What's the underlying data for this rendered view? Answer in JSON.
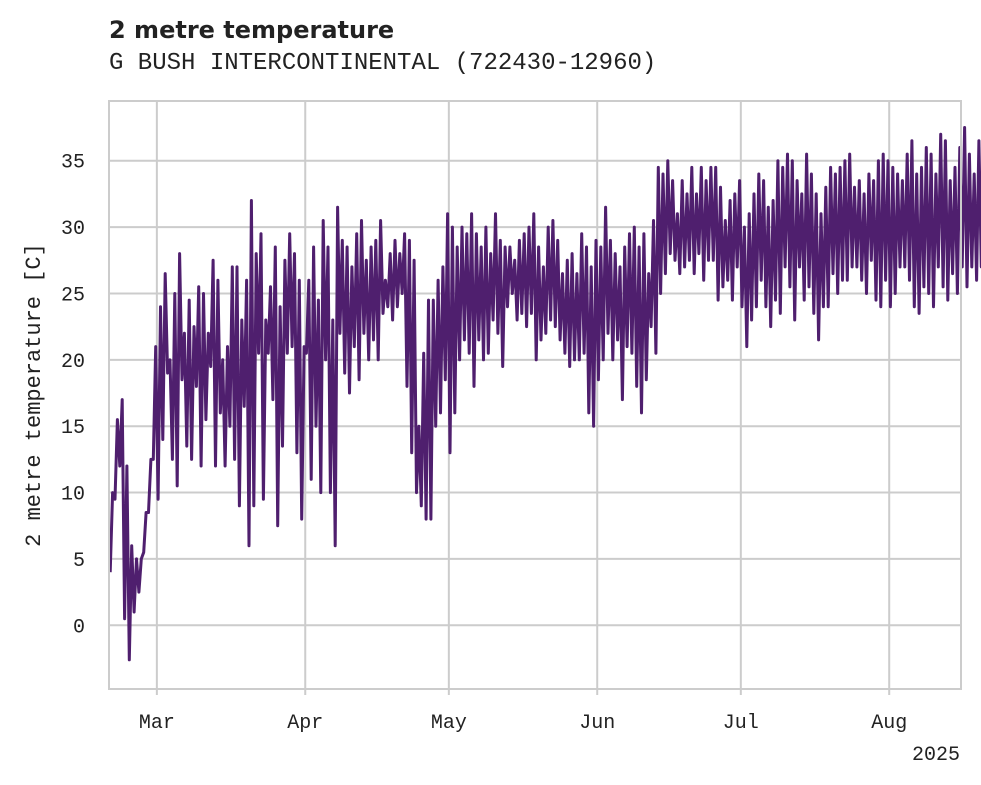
{
  "chart_data": {
    "type": "line",
    "title": "2 metre temperature",
    "subtitle": "G BUSH INTERCONTINENTAL (722430-12960)",
    "ylabel": "2 metre temperature [C]",
    "xlabel": "",
    "x_offset_label": "2025",
    "x_range": [
      "2025-02-19",
      "2025-08-16"
    ],
    "ylim": [
      -4.8,
      39.5
    ],
    "yticks": [
      0,
      5,
      10,
      15,
      20,
      25,
      30,
      35
    ],
    "xticks": [
      {
        "date": "2025-03-01",
        "label": "Mar"
      },
      {
        "date": "2025-04-01",
        "label": "Apr"
      },
      {
        "date": "2025-05-01",
        "label": "May"
      },
      {
        "date": "2025-06-01",
        "label": "Jun"
      },
      {
        "date": "2025-07-01",
        "label": "Jul"
      },
      {
        "date": "2025-08-01",
        "label": "Aug"
      }
    ],
    "grid": true,
    "series": [
      {
        "color": "#4f1f6e",
        "x_step_hours": 24,
        "x_start": "2025-02-19",
        "daily_min": [
          4.0,
          9.5,
          12.0,
          0.5,
          -2.6,
          1.0,
          2.5,
          5.5,
          8.5,
          12.5,
          9.5,
          14.0,
          19.0,
          12.5,
          10.5,
          18.5,
          13.5,
          12.5,
          18.0,
          12.0,
          15.5,
          19.5,
          12.0,
          16.0,
          12.0,
          15.0,
          12.5,
          9.0,
          16.5,
          6.0,
          9.0,
          20.5,
          9.5,
          20.5,
          17.0,
          7.5,
          13.5,
          20.5,
          21.0,
          13.0,
          8.0,
          20.5,
          11.0,
          15.0,
          10.0,
          20.0,
          10.0,
          6.0,
          22.0,
          19.0,
          17.5,
          21.0,
          18.5,
          22.0,
          20.0,
          21.5,
          20.0,
          23.5,
          24.0,
          23.0,
          24.0,
          25.0,
          18.0,
          13.0,
          10.0,
          9.0,
          8.0,
          8.0,
          15.0,
          16.0,
          18.5,
          13.0,
          16.0,
          20.0,
          21.5,
          20.5,
          18.0,
          21.5,
          20.0,
          20.5,
          23.0,
          22.0,
          19.5,
          24.0,
          25.0,
          23.0,
          23.5,
          22.5,
          23.5,
          20.0,
          21.5,
          22.0,
          23.0,
          22.5,
          21.5,
          20.5,
          19.5,
          20.0,
          20.0,
          20.5,
          16.0,
          15.0,
          18.5,
          20.0,
          22.0,
          20.0,
          21.5,
          17.0,
          21.0,
          20.5,
          18.0,
          16.0,
          18.5,
          22.5,
          20.5,
          25.0,
          26.5,
          28.0,
          27.5,
          26.5,
          27.0,
          27.5,
          26.5,
          28.0,
          26.0,
          27.5,
          27.5,
          24.5,
          25.5,
          26.0,
          24.5,
          27.0,
          24.0,
          21.0,
          23.0,
          24.0,
          26.0,
          24.0,
          22.5,
          24.5,
          23.5,
          27.0,
          25.5,
          23.0,
          27.0,
          24.5,
          25.5,
          23.5,
          21.5,
          24.0,
          24.0,
          26.5,
          25.0,
          26.0,
          26.0,
          27.0,
          27.0,
          26.0,
          25.0,
          27.5,
          24.5,
          24.0,
          26.0,
          24.0,
          25.0,
          27.0,
          27.0,
          26.0,
          24.0,
          23.5,
          25.5,
          25.0,
          24.0,
          27.0,
          25.5,
          24.5,
          26.5,
          25.0,
          27.0,
          25.5,
          27.0,
          26.0,
          27.0,
          24.5
        ],
        "daily_max": [
          10.0,
          15.5,
          17.0,
          12.0,
          6.0,
          5.0,
          5.0,
          8.5,
          12.5,
          21.0,
          24.0,
          26.5,
          20.0,
          25.0,
          28.0,
          22.0,
          24.5,
          22.5,
          25.5,
          25.0,
          22.0,
          27.5,
          26.0,
          20.0,
          21.0,
          27.0,
          27.0,
          23.0,
          26.0,
          32.0,
          28.0,
          29.5,
          23.0,
          25.5,
          28.5,
          24.0,
          27.5,
          29.5,
          28.0,
          26.0,
          21.0,
          26.0,
          28.5,
          24.5,
          30.5,
          28.5,
          23.0,
          31.5,
          29.0,
          28.5,
          27.0,
          29.5,
          30.5,
          27.5,
          28.5,
          29.0,
          30.5,
          26.0,
          28.0,
          29.0,
          28.0,
          29.5,
          29.0,
          27.5,
          15.0,
          20.5,
          24.5,
          24.5,
          26.0,
          27.0,
          31.0,
          30.0,
          28.5,
          30.0,
          29.5,
          31.0,
          29.5,
          28.5,
          30.0,
          28.0,
          31.0,
          29.0,
          28.5,
          28.5,
          27.5,
          29.0,
          29.5,
          30.0,
          31.0,
          28.5,
          27.0,
          30.0,
          30.5,
          29.0,
          26.5,
          27.5,
          28.0,
          26.5,
          29.5,
          28.5,
          27.0,
          29.0,
          28.5,
          31.5,
          29.0,
          28.0,
          27.0,
          28.5,
          29.5,
          30.0,
          28.5,
          29.5,
          26.5,
          30.5,
          34.5,
          34.0,
          35.0,
          33.5,
          31.0,
          33.5,
          32.5,
          34.5,
          32.5,
          34.5,
          33.5,
          34.5,
          34.5,
          33.0,
          30.5,
          32.0,
          32.5,
          33.5,
          30.0,
          31.0,
          32.5,
          34.0,
          33.5,
          31.5,
          32.0,
          35.0,
          34.5,
          35.5,
          35.0,
          33.5,
          32.5,
          35.5,
          34.0,
          32.5,
          31.0,
          33.0,
          34.5,
          34.0,
          34.5,
          35.0,
          35.5,
          33.0,
          33.5,
          32.5,
          34.0,
          33.5,
          35.0,
          35.5,
          35.0,
          34.5,
          34.0,
          33.5,
          35.5,
          36.5,
          34.0,
          34.5,
          36.0,
          35.5,
          34.0,
          37.0,
          36.5,
          33.5,
          34.5,
          36.0,
          37.5,
          35.5,
          34.0,
          36.5,
          35.5,
          34.5
        ]
      }
    ]
  }
}
